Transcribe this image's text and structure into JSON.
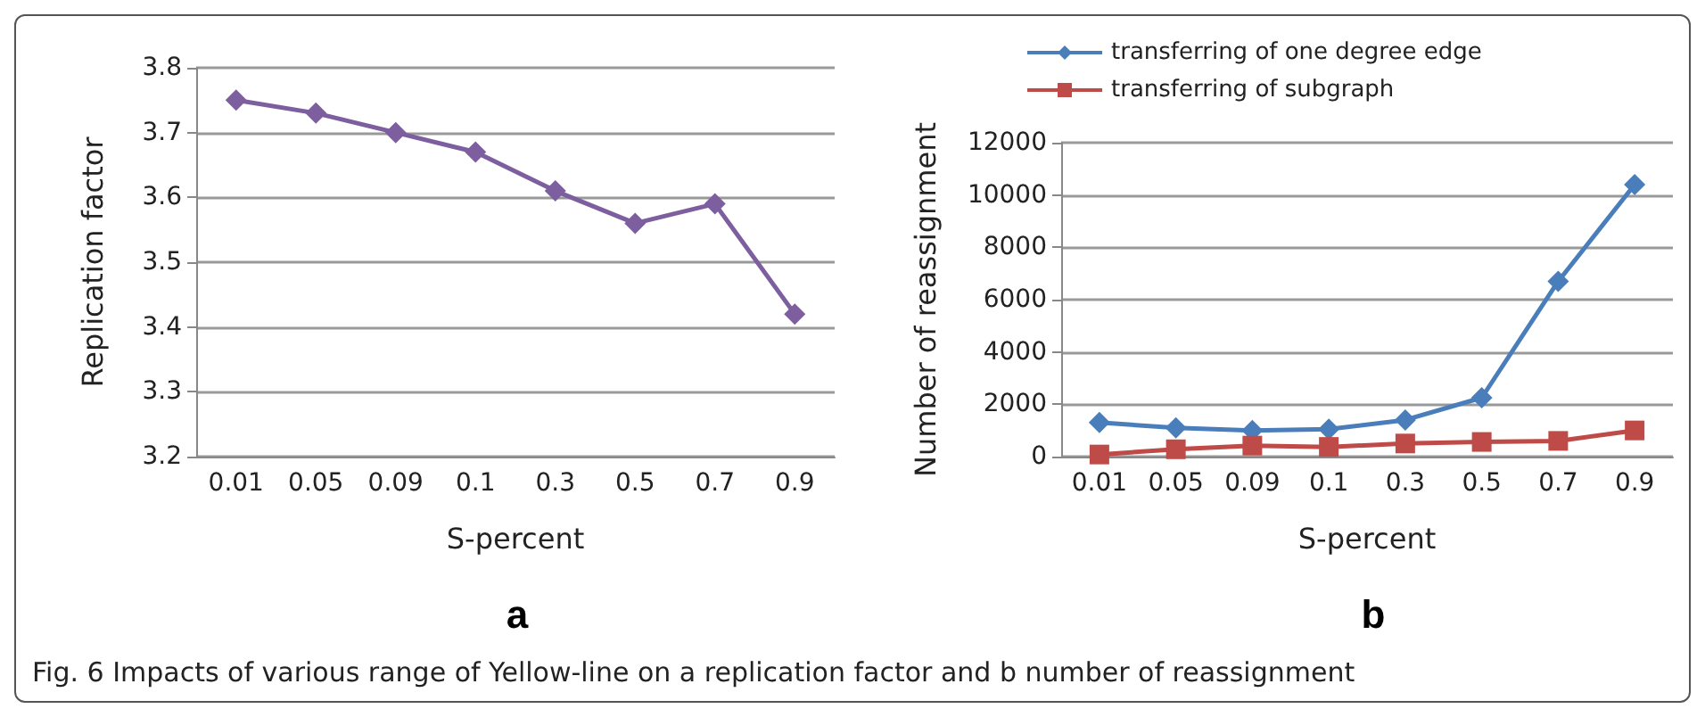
{
  "chart_data": [
    {
      "type": "line",
      "xlabel": "S-percent",
      "ylabel": "Replication factor",
      "categories": [
        "0.01",
        "0.05",
        "0.09",
        "0.1",
        "0.3",
        "0.5",
        "0.7",
        "0.9"
      ],
      "series": [
        {
          "color": "#7d5fa0",
          "values": [
            3.75,
            3.73,
            3.7,
            3.67,
            3.61,
            3.56,
            3.59,
            3.42
          ]
        }
      ],
      "ylim": [
        3.2,
        3.8
      ],
      "yticks": [
        3.2,
        3.3,
        3.4,
        3.5,
        3.6,
        3.7,
        3.8
      ],
      "grid": "y",
      "legend": false,
      "marker": "diamond",
      "annotations": [
        "a"
      ]
    },
    {
      "type": "line",
      "xlabel": "S-percent",
      "ylabel": "Number of reassignment",
      "categories": [
        "0.01",
        "0.05",
        "0.09",
        "0.1",
        "0.3",
        "0.5",
        "0.7",
        "0.9"
      ],
      "series": [
        {
          "name": "transferring of one degree edge",
          "color": "#4a7ebb",
          "marker": "diamond",
          "values": [
            1300,
            1100,
            1000,
            1050,
            1400,
            2250,
            6700,
            10400
          ]
        },
        {
          "name": "transferring of subgraph",
          "color": "#be4b48",
          "marker": "square",
          "values": [
            80,
            280,
            420,
            370,
            500,
            560,
            600,
            1000
          ]
        }
      ],
      "ylim": [
        0,
        12000
      ],
      "yticks": [
        0,
        2000,
        4000,
        6000,
        8000,
        10000,
        12000
      ],
      "grid": "y",
      "legend": "top left",
      "annotations": [
        "b",
        "Fig. 6  Impacts of various range of Yellow-line on a replication factor and b number of reassignment"
      ]
    }
  ]
}
